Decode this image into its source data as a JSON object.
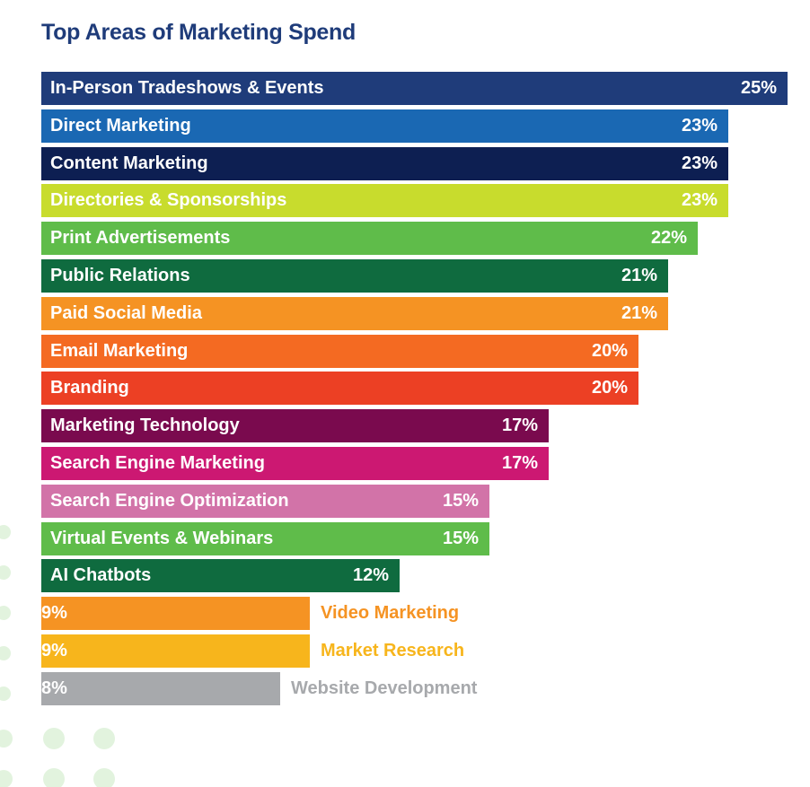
{
  "chart_data": {
    "type": "bar",
    "orientation": "horizontal",
    "title": "Top Areas of Marketing Spend",
    "xlim": [
      0,
      25
    ],
    "grid": false,
    "legend": "none",
    "categories": [
      "In-Person Tradeshows & Events",
      "Direct Marketing",
      "Content Marketing",
      "Directories & Sponsorships",
      "Print Advertisements",
      "Public Relations",
      "Paid Social Media",
      "Email Marketing",
      "Branding",
      "Marketing Technology",
      "Search Engine Marketing",
      "Search Engine Optimization",
      "Virtual Events & Webinars",
      "AI Chatbots",
      "Video Marketing",
      "Market Research",
      "Website Development"
    ],
    "values": [
      25,
      23,
      23,
      23,
      22,
      21,
      21,
      20,
      20,
      17,
      17,
      15,
      15,
      12,
      9,
      9,
      8
    ],
    "value_labels": [
      "25%",
      "23%",
      "23%",
      "23%",
      "22%",
      "21%",
      "21%",
      "20%",
      "20%",
      "17%",
      "17%",
      "15%",
      "15%",
      "12%",
      "9%",
      "9%",
      "8%"
    ],
    "colors": [
      "#1f3c7a",
      "#1a68b3",
      "#0d1f52",
      "#c8dc2d",
      "#5fbc4a",
      "#0f6b3f",
      "#f59323",
      "#f46a22",
      "#ec4024",
      "#7a0a4e",
      "#cc1872",
      "#d273a8",
      "#5fbc4a",
      "#0f6b3f",
      "#f59323",
      "#f7b51c",
      "#a7a9ac"
    ]
  }
}
